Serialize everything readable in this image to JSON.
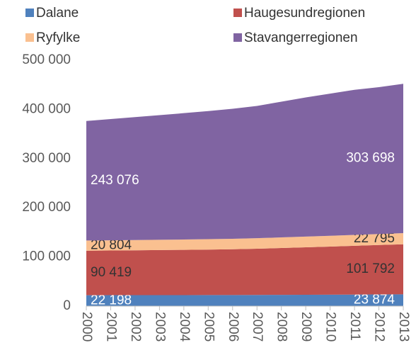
{
  "chart_data": {
    "type": "stacked_area",
    "categories": [
      "2000",
      "2001",
      "2002",
      "2003",
      "2004",
      "2005",
      "2006",
      "2007",
      "2008",
      "2009",
      "2010",
      "2011",
      "2012",
      "2013"
    ],
    "series": [
      {
        "name": "Dalane",
        "color": "#4f81bd",
        "label_color": "#ffffff",
        "values": [
          22198,
          22250,
          22300,
          22350,
          22400,
          22500,
          22600,
          22750,
          22900,
          23100,
          23300,
          23500,
          23700,
          23874
        ],
        "value_labels": [
          "22 198",
          null,
          null,
          null,
          null,
          null,
          null,
          null,
          null,
          null,
          null,
          null,
          null,
          "23 874"
        ]
      },
      {
        "name": "Haugesundregionen",
        "color": "#c0504d",
        "label_color": "#333333",
        "values": [
          90419,
          90800,
          91200,
          91600,
          92000,
          92500,
          93000,
          94000,
          95200,
          96500,
          97800,
          99200,
          100500,
          101792
        ],
        "value_labels": [
          "90 419",
          null,
          null,
          null,
          null,
          null,
          null,
          null,
          null,
          null,
          null,
          null,
          null,
          "101 792"
        ]
      },
      {
        "name": "Ryfylke",
        "color": "#fac090",
        "label_color": "#333333",
        "values": [
          20804,
          20850,
          20900,
          20950,
          21000,
          21100,
          21200,
          21400,
          21600,
          21800,
          22000,
          22200,
          22500,
          22795
        ],
        "value_labels": [
          "20 804",
          null,
          null,
          null,
          null,
          null,
          null,
          null,
          null,
          null,
          null,
          null,
          null,
          "22 795"
        ]
      },
      {
        "name": "Stavangerregionen",
        "color": "#8064a2",
        "label_color": "#ffffff",
        "values": [
          243076,
          246500,
          250000,
          253500,
          257000,
          260500,
          264500,
          269000,
          276000,
          283000,
          289000,
          295000,
          298500,
          303698
        ],
        "value_labels": [
          "243 076",
          null,
          null,
          null,
          null,
          null,
          null,
          null,
          null,
          null,
          null,
          null,
          null,
          "303 698"
        ]
      }
    ],
    "ylim": [
      0,
      500000
    ],
    "yticks": [
      {
        "value": 0,
        "label": "0"
      },
      {
        "value": 100000,
        "label": "100 000"
      },
      {
        "value": 200000,
        "label": "200 000"
      },
      {
        "value": 300000,
        "label": "300 000"
      },
      {
        "value": 400000,
        "label": "400 000"
      },
      {
        "value": 500000,
        "label": "500 000"
      }
    ],
    "legend": "top"
  }
}
